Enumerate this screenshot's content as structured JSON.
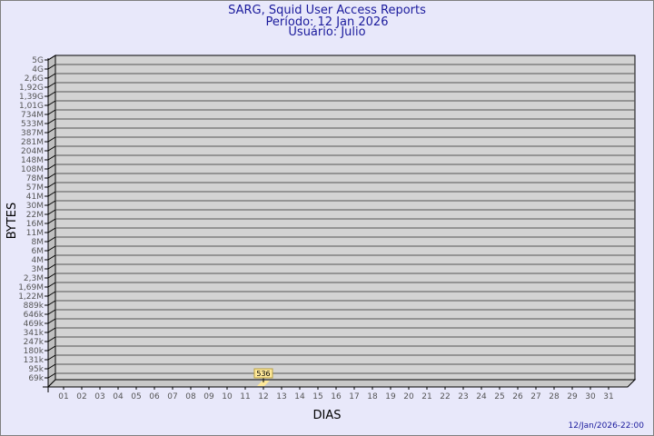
{
  "header": {
    "title": "SARG, Squid User Access Reports",
    "period": "Período: 12 Jan 2026",
    "user": "Usuário: Julio"
  },
  "footer": {
    "timestamp": "12/Jan/2026-22:00"
  },
  "colors": {
    "background": "#e6e6fa",
    "plot": "#d3d3d3",
    "bar": "#ffe99a",
    "title": "#1a1a9c"
  },
  "chart_data": {
    "type": "bar",
    "xlabel": "DIAS",
    "ylabel": "BYTES",
    "y_scale": "log",
    "y_tick_labels": [
      "5G",
      "4G",
      "2,6G",
      "1,92G",
      "1,39G",
      "1,01G",
      "734M",
      "533M",
      "387M",
      "281M",
      "204M",
      "148M",
      "108M",
      "78M",
      "57M",
      "41M",
      "30M",
      "22M",
      "16M",
      "11M",
      "8M",
      "6M",
      "4M",
      "3M",
      "2,3M",
      "1,69M",
      "1,22M",
      "889k",
      "646k",
      "469k",
      "341k",
      "247k",
      "180k",
      "131k",
      "95k",
      "69k"
    ],
    "categories": [
      "01",
      "02",
      "03",
      "04",
      "05",
      "06",
      "07",
      "08",
      "09",
      "10",
      "11",
      "12",
      "13",
      "14",
      "15",
      "16",
      "17",
      "18",
      "19",
      "20",
      "21",
      "22",
      "23",
      "24",
      "25",
      "26",
      "27",
      "28",
      "29",
      "30",
      "31"
    ],
    "bars": [
      {
        "x": "12",
        "value": 536,
        "label": "536"
      }
    ],
    "grid": true
  }
}
